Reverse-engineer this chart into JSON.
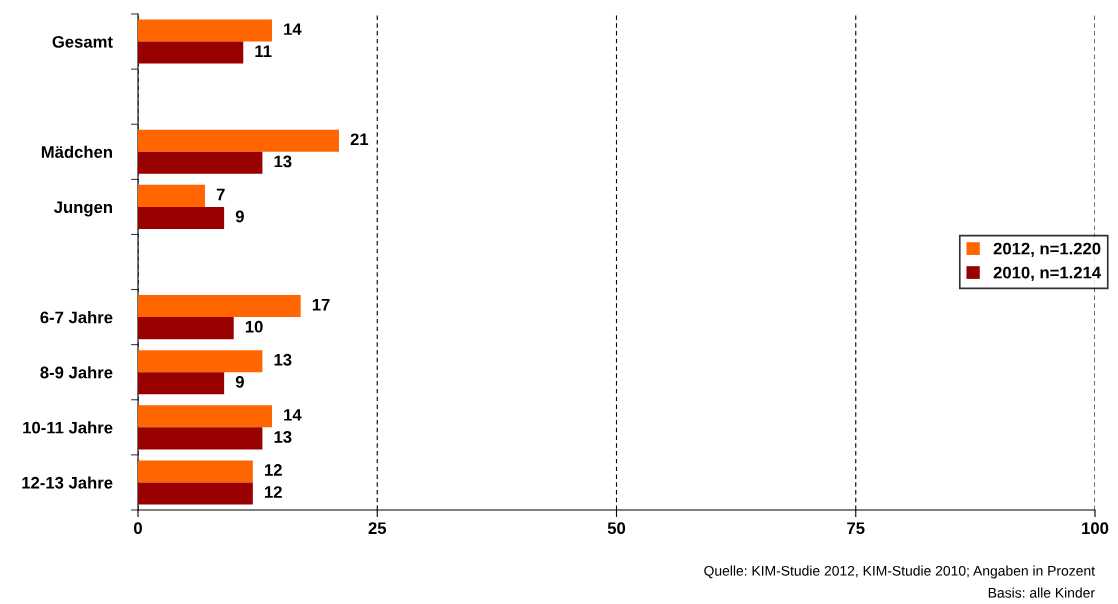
{
  "chart_data": {
    "type": "bar",
    "orientation": "horizontal",
    "categories": [
      "Gesamt",
      null,
      "Mädchen",
      "Jungen",
      null,
      "6-7 Jahre",
      "8-9 Jahre",
      "10-11 Jahre",
      "12-13 Jahre"
    ],
    "series": [
      {
        "name": "2012, n=1.220",
        "color": "#ff6600",
        "values": [
          14,
          null,
          21,
          7,
          null,
          17,
          13,
          14,
          12
        ]
      },
      {
        "name": "2010, n=1.214",
        "color": "#990000",
        "values": [
          11,
          null,
          13,
          9,
          null,
          10,
          9,
          13,
          12
        ]
      }
    ],
    "xlim": [
      0,
      100
    ],
    "xticks": [
      0,
      25,
      50,
      75,
      100
    ],
    "grid": "x",
    "legend": "right",
    "data_labels": true,
    "annotations": [
      "Quelle: KIM-Studie 2012, KIM-Studie 2010; Angaben in Prozent",
      "Basis: alle Kinder"
    ]
  }
}
